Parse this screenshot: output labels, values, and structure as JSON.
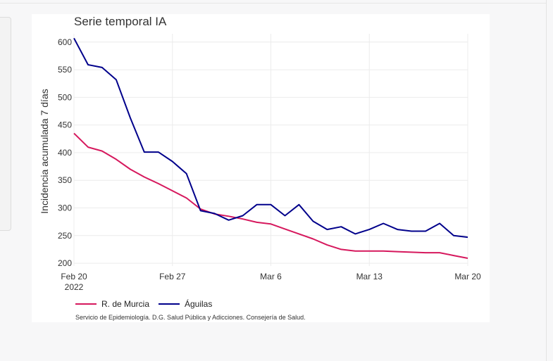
{
  "chart_data": {
    "type": "line",
    "title": "Serie temporal IA",
    "ylabel": "Incidencia acumulada 7 días",
    "xlabel": "",
    "x_start": "2022-02-20",
    "x_end": "2022-03-20",
    "xticks": [
      {
        "date": "2022-02-20",
        "label": "Feb 20",
        "sublabel": "2022"
      },
      {
        "date": "2022-02-27",
        "label": "Feb 27"
      },
      {
        "date": "2022-03-06",
        "label": "Mar 6"
      },
      {
        "date": "2022-03-13",
        "label": "Mar 13"
      },
      {
        "date": "2022-03-20",
        "label": "Mar 20"
      }
    ],
    "ylim": [
      195,
      615
    ],
    "yticks": [
      200,
      250,
      300,
      350,
      400,
      450,
      500,
      550,
      600
    ],
    "grid": true,
    "legend": "bottom-left",
    "x": [
      "2022-02-20",
      "2022-02-21",
      "2022-02-22",
      "2022-02-23",
      "2022-02-24",
      "2022-02-25",
      "2022-02-26",
      "2022-02-27",
      "2022-02-28",
      "2022-03-01",
      "2022-03-02",
      "2022-03-03",
      "2022-03-04",
      "2022-03-05",
      "2022-03-06",
      "2022-03-07",
      "2022-03-08",
      "2022-03-09",
      "2022-03-10",
      "2022-03-11",
      "2022-03-12",
      "2022-03-13",
      "2022-03-14",
      "2022-03-15",
      "2022-03-16",
      "2022-03-17",
      "2022-03-18",
      "2022-03-19",
      "2022-03-20"
    ],
    "series": [
      {
        "name": "R. de Murcia",
        "color": "#d6185d",
        "values": [
          435,
          410,
          403,
          388,
          370,
          356,
          344,
          331,
          318,
          298,
          289,
          285,
          280,
          274,
          271,
          262,
          253,
          244,
          233,
          225,
          222,
          222,
          222,
          221,
          220,
          219,
          219,
          214,
          209
        ]
      },
      {
        "name": "Águilas",
        "color": "#00008b",
        "values": [
          607,
          559,
          554,
          532,
          463,
          401,
          401,
          384,
          362,
          295,
          290,
          278,
          286,
          306,
          306,
          286,
          306,
          276,
          261,
          266,
          253,
          261,
          272,
          261,
          258,
          258,
          272,
          250,
          247
        ]
      }
    ]
  },
  "footnote": "Servicio de Epidemiología. D.G. Salud Pública y Adicciones. Consejería de Salud."
}
